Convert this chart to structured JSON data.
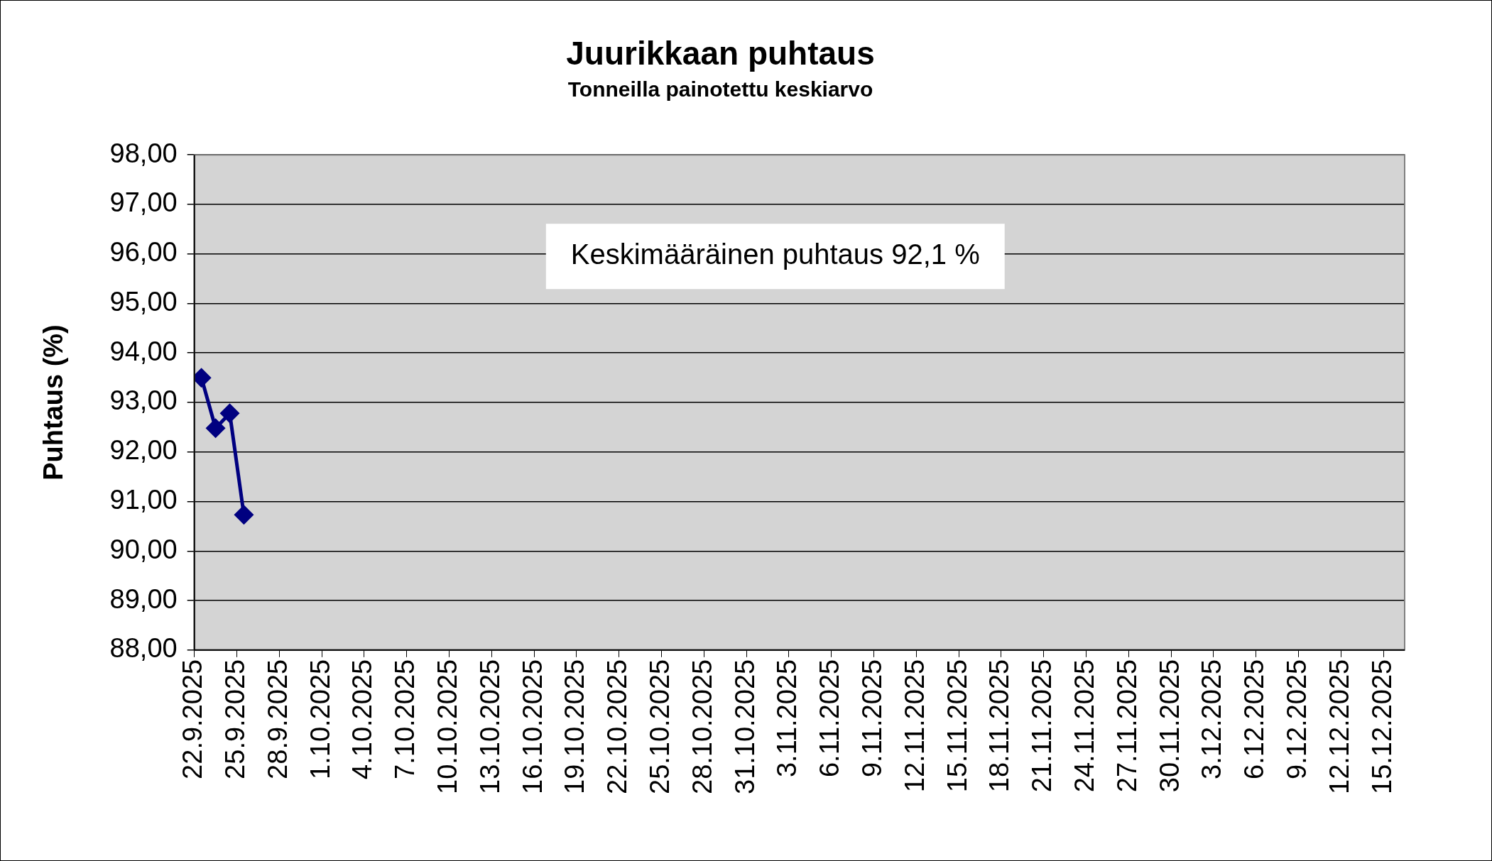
{
  "chart_data": {
    "type": "line",
    "title": "Juurikkaan puhtaus",
    "subtitle": "Tonneilla painotettu keskiarvo",
    "ylabel": "Puhtaus (%)",
    "annotations": [
      "Keskimääräinen puhtaus 92,1 %"
    ],
    "x": [
      "2025-09-22T12:00",
      "2025-09-23T12:00",
      "2025-09-24T12:00",
      "2025-09-25T12:00"
    ],
    "series": [
      {
        "color": "#000080",
        "values": [
          93.5,
          92.48,
          92.78,
          90.73
        ]
      }
    ],
    "ylim": [
      88,
      98
    ],
    "yticks": [
      {
        "value": 88,
        "label": "88,00"
      },
      {
        "value": 89,
        "label": "89,00"
      },
      {
        "value": 90,
        "label": "90,00"
      },
      {
        "value": 91,
        "label": "91,00"
      },
      {
        "value": 92,
        "label": "92,00"
      },
      {
        "value": 93,
        "label": "93,00"
      },
      {
        "value": 94,
        "label": "94,00"
      },
      {
        "value": 95,
        "label": "95,00"
      },
      {
        "value": 96,
        "label": "96,00"
      },
      {
        "value": 97,
        "label": "97,00"
      },
      {
        "value": 98,
        "label": "98,00"
      }
    ],
    "xlim": [
      "2025-09-22",
      "2025-12-16T12:00"
    ],
    "xticks": [
      {
        "value": "2025-09-22",
        "label": "22.9.2025"
      },
      {
        "value": "2025-09-25",
        "label": "25.9.2025"
      },
      {
        "value": "2025-09-28",
        "label": "28.9.2025"
      },
      {
        "value": "2025-10-01",
        "label": "1.10.2025"
      },
      {
        "value": "2025-10-04",
        "label": "4.10.2025"
      },
      {
        "value": "2025-10-07",
        "label": "7.10.2025"
      },
      {
        "value": "2025-10-10",
        "label": "10.10.2025"
      },
      {
        "value": "2025-10-13",
        "label": "13.10.2025"
      },
      {
        "value": "2025-10-16",
        "label": "16.10.2025"
      },
      {
        "value": "2025-10-19",
        "label": "19.10.2025"
      },
      {
        "value": "2025-10-22",
        "label": "22.10.2025"
      },
      {
        "value": "2025-10-25",
        "label": "25.10.2025"
      },
      {
        "value": "2025-10-28",
        "label": "28.10.2025"
      },
      {
        "value": "2025-10-31",
        "label": "31.10.2025"
      },
      {
        "value": "2025-11-03",
        "label": "3.11.2025"
      },
      {
        "value": "2025-11-06",
        "label": "6.11.2025"
      },
      {
        "value": "2025-11-09",
        "label": "9.11.2025"
      },
      {
        "value": "2025-11-12",
        "label": "12.11.2025"
      },
      {
        "value": "2025-11-15",
        "label": "15.11.2025"
      },
      {
        "value": "2025-11-18",
        "label": "18.11.2025"
      },
      {
        "value": "2025-11-21",
        "label": "21.11.2025"
      },
      {
        "value": "2025-11-24",
        "label": "24.11.2025"
      },
      {
        "value": "2025-11-27",
        "label": "27.11.2025"
      },
      {
        "value": "2025-11-30",
        "label": "30.11.2025"
      },
      {
        "value": "2025-12-03",
        "label": "3.12.2025"
      },
      {
        "value": "2025-12-06",
        "label": "6.12.2025"
      },
      {
        "value": "2025-12-09",
        "label": "9.12.2025"
      },
      {
        "value": "2025-12-12",
        "label": "12.12.2025"
      },
      {
        "value": "2025-12-15",
        "label": "15.12.2025"
      }
    ],
    "grid": "y",
    "legend": false,
    "marker": "diamond",
    "line_style": "solid"
  }
}
